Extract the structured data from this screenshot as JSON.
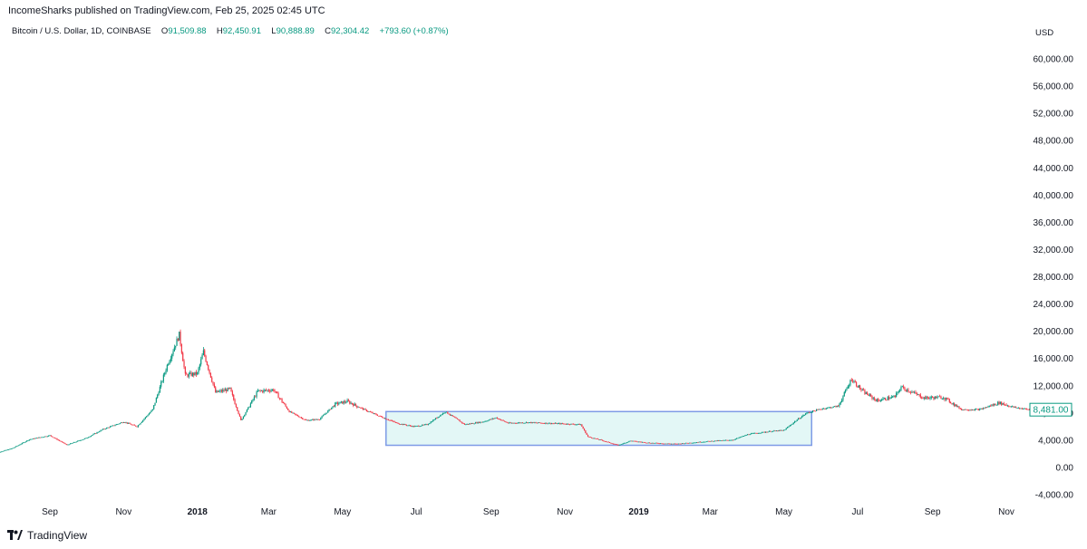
{
  "header": {
    "publish_line": "IncomeSharks published on TradingView.com, Feb 25, 2025 02:45 UTC",
    "symbol": "Bitcoin / U.S. Dollar, 1D, COINBASE",
    "open_label": "O",
    "open_value": "91,509.88",
    "high_label": "H",
    "high_value": "92,450.91",
    "low_label": "L",
    "low_value": "90,888.89",
    "close_label": "C",
    "close_value": "92,304.42",
    "change": "+793.60 (+0.87%)"
  },
  "axis": {
    "currency": "USD"
  },
  "footer": {
    "brand": "TradingView"
  },
  "colors": {
    "up": "#089981",
    "down": "#f23645",
    "box_fill": "#e3f7f6",
    "box_stroke": "#7e9be6",
    "price_label": "#089981"
  },
  "chart_data": {
    "type": "candlestick",
    "title": "",
    "xlabel": "",
    "ylabel": "USD",
    "ylim": [
      -4000,
      60000
    ],
    "y_ticks": [
      "60,000.00",
      "56,000.00",
      "52,000.00",
      "48,000.00",
      "44,000.00",
      "40,000.00",
      "36,000.00",
      "32,000.00",
      "28,000.00",
      "24,000.00",
      "20,000.00",
      "16,000.00",
      "12,000.00",
      "8,000.00",
      "4,000.00",
      "0.00",
      "-4,000.00"
    ],
    "y_tick_values": [
      60000,
      56000,
      52000,
      48000,
      44000,
      40000,
      36000,
      32000,
      28000,
      24000,
      20000,
      16000,
      12000,
      8000,
      4000,
      0,
      -4000
    ],
    "x_ticks": [
      {
        "label": "Sep",
        "date": "2017-09-01",
        "bold": false
      },
      {
        "label": "Nov",
        "date": "2017-11-01",
        "bold": false
      },
      {
        "label": "2018",
        "date": "2018-01-01",
        "bold": true
      },
      {
        "label": "Mar",
        "date": "2018-03-01",
        "bold": false
      },
      {
        "label": "May",
        "date": "2018-05-01",
        "bold": false
      },
      {
        "label": "Jul",
        "date": "2018-07-01",
        "bold": false
      },
      {
        "label": "Sep",
        "date": "2018-09-01",
        "bold": false
      },
      {
        "label": "Nov",
        "date": "2018-11-01",
        "bold": false
      },
      {
        "label": "2019",
        "date": "2019-01-01",
        "bold": true
      },
      {
        "label": "Mar",
        "date": "2019-03-01",
        "bold": false
      },
      {
        "label": "May",
        "date": "2019-05-01",
        "bold": false
      },
      {
        "label": "Jul",
        "date": "2019-07-01",
        "bold": false
      },
      {
        "label": "Sep",
        "date": "2019-09-01",
        "bold": false
      },
      {
        "label": "Nov",
        "date": "2019-11-01",
        "bold": false
      }
    ],
    "price_path": [
      [
        "2017-07-15",
        1950
      ],
      [
        "2017-08-01",
        2800
      ],
      [
        "2017-08-15",
        4100
      ],
      [
        "2017-09-01",
        4700
      ],
      [
        "2017-09-15",
        3300
      ],
      [
        "2017-10-01",
        4300
      ],
      [
        "2017-10-15",
        5600
      ],
      [
        "2017-11-01",
        6700
      ],
      [
        "2017-11-12",
        6000
      ],
      [
        "2017-11-25",
        8500
      ],
      [
        "2017-12-07",
        15000
      ],
      [
        "2017-12-17",
        19500
      ],
      [
        "2017-12-22",
        13500
      ],
      [
        "2018-01-01",
        13800
      ],
      [
        "2018-01-06",
        17000
      ],
      [
        "2018-01-16",
        11000
      ],
      [
        "2018-01-28",
        11500
      ],
      [
        "2018-02-06",
        6900
      ],
      [
        "2018-02-20",
        11200
      ],
      [
        "2018-03-05",
        11400
      ],
      [
        "2018-03-18",
        8200
      ],
      [
        "2018-04-01",
        6900
      ],
      [
        "2018-04-12",
        7100
      ],
      [
        "2018-04-25",
        9300
      ],
      [
        "2018-05-05",
        9700
      ],
      [
        "2018-05-20",
        8400
      ],
      [
        "2018-06-01",
        7500
      ],
      [
        "2018-06-15",
        6500
      ],
      [
        "2018-06-29",
        6000
      ],
      [
        "2018-07-10",
        6300
      ],
      [
        "2018-07-25",
        8200
      ],
      [
        "2018-08-10",
        6300
      ],
      [
        "2018-08-25",
        6700
      ],
      [
        "2018-09-05",
        7300
      ],
      [
        "2018-09-15",
        6500
      ],
      [
        "2018-10-01",
        6600
      ],
      [
        "2018-11-01",
        6400
      ],
      [
        "2018-11-14",
        6300
      ],
      [
        "2018-11-20",
        4500
      ],
      [
        "2018-12-01",
        4000
      ],
      [
        "2018-12-15",
        3250
      ],
      [
        "2018-12-25",
        3900
      ],
      [
        "2019-01-10",
        3600
      ],
      [
        "2019-02-01",
        3450
      ],
      [
        "2019-02-15",
        3650
      ],
      [
        "2019-03-01",
        3850
      ],
      [
        "2019-03-20",
        4050
      ],
      [
        "2019-04-02",
        4900
      ],
      [
        "2019-04-20",
        5300
      ],
      [
        "2019-05-01",
        5450
      ],
      [
        "2019-05-12",
        7000
      ],
      [
        "2019-05-20",
        8000
      ],
      [
        "2019-06-01",
        8600
      ],
      [
        "2019-06-15",
        9000
      ],
      [
        "2019-06-26",
        13000
      ],
      [
        "2019-07-05",
        11200
      ],
      [
        "2019-07-17",
        9800
      ],
      [
        "2019-08-01",
        10400
      ],
      [
        "2019-08-06",
        11800
      ],
      [
        "2019-08-25",
        10200
      ],
      [
        "2019-09-10",
        10300
      ],
      [
        "2019-09-25",
        8500
      ],
      [
        "2019-10-10",
        8500
      ],
      [
        "2019-10-26",
        9500
      ],
      [
        "2019-11-08",
        8800
      ],
      [
        "2019-11-20",
        8481
      ]
    ],
    "rectangle": {
      "x0": "2018-06-06",
      "x1": "2019-05-24",
      "y0": 3250,
      "y1": 8200
    },
    "last_price": 8481,
    "last_price_label": "8,481.00",
    "grid": false,
    "legend": "top-left"
  }
}
